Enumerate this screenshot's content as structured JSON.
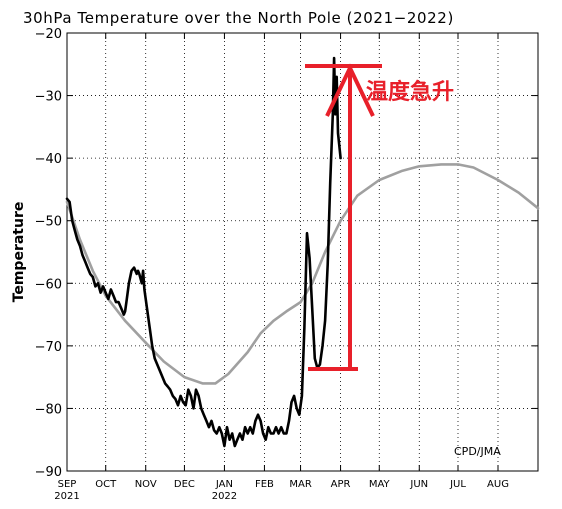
{
  "chart_data": {
    "type": "line",
    "title": "30hPa Temperature over the North Pole (2021−2022)",
    "xlabel": "",
    "ylabel": "Temperature",
    "ylim": [
      -90,
      -20
    ],
    "yticks": [
      -20,
      -30,
      -40,
      -50,
      -60,
      -70,
      -80,
      -90
    ],
    "ytick_labels": [
      "−20",
      "−30",
      "−40",
      "−50",
      "−60",
      "−70",
      "−80",
      "−90"
    ],
    "xlim": [
      0,
      365
    ],
    "xticks": [
      {
        "day": 0,
        "label": "SEP",
        "year": "2021"
      },
      {
        "day": 30,
        "label": "OCT",
        "year": ""
      },
      {
        "day": 61,
        "label": "NOV",
        "year": ""
      },
      {
        "day": 91,
        "label": "DEC",
        "year": ""
      },
      {
        "day": 122,
        "label": "JAN",
        "year": "2022"
      },
      {
        "day": 153,
        "label": "FEB",
        "year": ""
      },
      {
        "day": 181,
        "label": "MAR",
        "year": ""
      },
      {
        "day": 212,
        "label": "APR",
        "year": ""
      },
      {
        "day": 242,
        "label": "MAY",
        "year": ""
      },
      {
        "day": 273,
        "label": "JUN",
        "year": ""
      },
      {
        "day": 303,
        "label": "JUL",
        "year": ""
      },
      {
        "day": 334,
        "label": "AUG",
        "year": ""
      }
    ],
    "grid": true,
    "series": [
      {
        "color": "#a0a0a0",
        "points": [
          [
            0,
            -47
          ],
          [
            10,
            -53
          ],
          [
            20,
            -58
          ],
          [
            30,
            -62
          ],
          [
            45,
            -66
          ],
          [
            61,
            -69.5
          ],
          [
            75,
            -72.5
          ],
          [
            91,
            -75
          ],
          [
            105,
            -76
          ],
          [
            115,
            -76
          ],
          [
            125,
            -74.5
          ],
          [
            140,
            -71
          ],
          [
            150,
            -68
          ],
          [
            160,
            -66
          ],
          [
            170,
            -64.5
          ],
          [
            181,
            -63
          ],
          [
            190,
            -60
          ],
          [
            200,
            -55
          ],
          [
            212,
            -50
          ],
          [
            225,
            -46
          ],
          [
            242,
            -43.5
          ],
          [
            260,
            -42
          ],
          [
            273,
            -41.3
          ],
          [
            290,
            -41
          ],
          [
            303,
            -41
          ],
          [
            315,
            -41.5
          ],
          [
            334,
            -43.5
          ],
          [
            350,
            -45.5
          ],
          [
            365,
            -48
          ]
        ]
      },
      {
        "color": "#000000",
        "points": [
          [
            0,
            -46.5
          ],
          [
            2,
            -47
          ],
          [
            4,
            -50
          ],
          [
            6,
            -51.5
          ],
          [
            8,
            -53
          ],
          [
            10,
            -54
          ],
          [
            12,
            -55.5
          ],
          [
            14,
            -56.5
          ],
          [
            16,
            -57.5
          ],
          [
            18,
            -58.5
          ],
          [
            20,
            -59
          ],
          [
            22,
            -60.5
          ],
          [
            24,
            -60
          ],
          [
            26,
            -61.5
          ],
          [
            28,
            -60.5
          ],
          [
            30,
            -61.5
          ],
          [
            32,
            -62.5
          ],
          [
            34,
            -61
          ],
          [
            36,
            -62
          ],
          [
            38,
            -63
          ],
          [
            40,
            -63
          ],
          [
            42,
            -64
          ],
          [
            44,
            -65
          ],
          [
            45,
            -64.5
          ],
          [
            46,
            -63
          ],
          [
            48,
            -60
          ],
          [
            50,
            -58
          ],
          [
            52,
            -57.5
          ],
          [
            54,
            -58.5
          ],
          [
            55,
            -58
          ],
          [
            56,
            -58.5
          ],
          [
            58,
            -60
          ],
          [
            59,
            -58
          ],
          [
            60,
            -61
          ],
          [
            62,
            -64
          ],
          [
            64,
            -67
          ],
          [
            66,
            -70
          ],
          [
            68,
            -72
          ],
          [
            70,
            -73
          ],
          [
            72,
            -74
          ],
          [
            74,
            -75
          ],
          [
            76,
            -76
          ],
          [
            78,
            -76.5
          ],
          [
            80,
            -77
          ],
          [
            82,
            -78
          ],
          [
            84,
            -78.5
          ],
          [
            86,
            -79.5
          ],
          [
            88,
            -78
          ],
          [
            90,
            -79
          ],
          [
            92,
            -79.5
          ],
          [
            94,
            -77
          ],
          [
            96,
            -78
          ],
          [
            98,
            -80
          ],
          [
            100,
            -77
          ],
          [
            102,
            -78
          ],
          [
            104,
            -80
          ],
          [
            106,
            -81
          ],
          [
            108,
            -82
          ],
          [
            110,
            -83
          ],
          [
            112,
            -82
          ],
          [
            114,
            -83.5
          ],
          [
            116,
            -84
          ],
          [
            118,
            -83
          ],
          [
            120,
            -84
          ],
          [
            122,
            -86
          ],
          [
            124,
            -83
          ],
          [
            126,
            -85
          ],
          [
            128,
            -84
          ],
          [
            130,
            -86
          ],
          [
            132,
            -85
          ],
          [
            134,
            -84
          ],
          [
            136,
            -85
          ],
          [
            138,
            -83
          ],
          [
            140,
            -84
          ],
          [
            142,
            -83
          ],
          [
            144,
            -84
          ],
          [
            146,
            -82
          ],
          [
            148,
            -81
          ],
          [
            150,
            -82
          ],
          [
            152,
            -84
          ],
          [
            154,
            -85
          ],
          [
            156,
            -83
          ],
          [
            158,
            -84
          ],
          [
            160,
            -84
          ],
          [
            162,
            -83
          ],
          [
            164,
            -84
          ],
          [
            166,
            -83
          ],
          [
            168,
            -84
          ],
          [
            170,
            -84
          ],
          [
            172,
            -82
          ],
          [
            174,
            -79
          ],
          [
            176,
            -78
          ],
          [
            178,
            -80
          ],
          [
            180,
            -81
          ],
          [
            182,
            -78
          ],
          [
            184,
            -67
          ],
          [
            186,
            -52
          ],
          [
            188,
            -56
          ],
          [
            190,
            -64
          ],
          [
            192,
            -72
          ],
          [
            194,
            -73.5
          ],
          [
            196,
            -73
          ],
          [
            198,
            -70
          ],
          [
            200,
            -66
          ],
          [
            202,
            -57
          ],
          [
            204,
            -44
          ],
          [
            206,
            -33
          ],
          [
            207,
            -24
          ],
          [
            208,
            -33
          ],
          [
            209,
            -27
          ],
          [
            210,
            -36
          ],
          [
            212,
            -40
          ]
        ]
      }
    ],
    "annotations": [
      {
        "text": "温度急升",
        "color": "#e8202a"
      },
      {
        "text": "CPD/JMA",
        "color": "#000000"
      }
    ],
    "arrow": {
      "from_value": -73.5,
      "to_value": -25.5,
      "color": "#e8202a"
    }
  }
}
